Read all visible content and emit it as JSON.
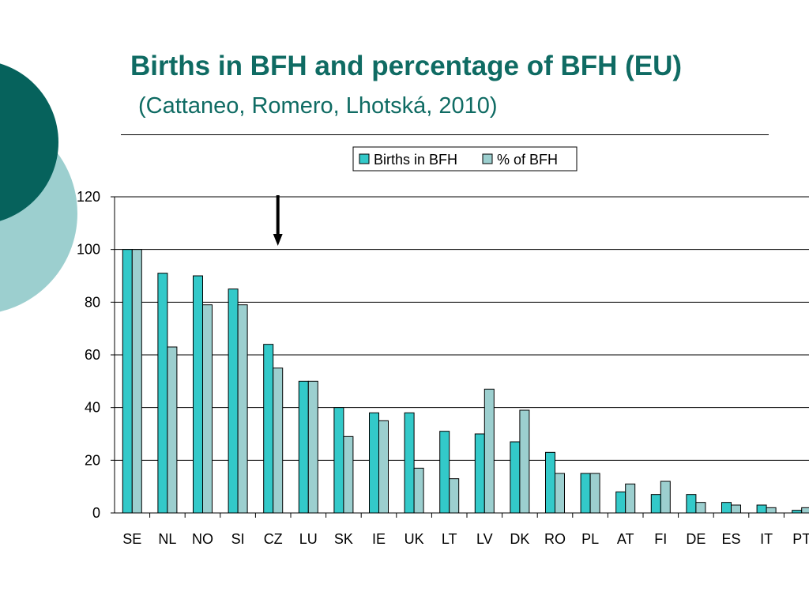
{
  "slide": {
    "title": "Births in BFH and percentage of BFH (EU)",
    "subtitle": "(Cattaneo, Romero, Lhotská, 2010)",
    "title_color": "#0f6b63",
    "decor_colors": {
      "dark_circle": "#06625c",
      "light_circle": "#9ccfcf"
    }
  },
  "chart_data": {
    "type": "bar",
    "title": "",
    "xlabel": "",
    "ylabel": "",
    "ylim": [
      0,
      120
    ],
    "yticks": [
      0,
      20,
      40,
      60,
      80,
      100,
      120
    ],
    "grid": true,
    "legend_position": "top-center",
    "categories": [
      "SE",
      "NL",
      "NO",
      "SI",
      "CZ",
      "LU",
      "SK",
      "IE",
      "UK",
      "LT",
      "LV",
      "DK",
      "RO",
      "PL",
      "AT",
      "FI",
      "DE",
      "ES",
      "IT",
      "PT"
    ],
    "series": [
      {
        "name": "Births in BFH",
        "color": "#33c9c9",
        "values": [
          100,
          91,
          90,
          85,
          64,
          50,
          40,
          38,
          38,
          31,
          30,
          27,
          23,
          15,
          8,
          7,
          7,
          4,
          3,
          1
        ]
      },
      {
        "name": "% of BFH",
        "color": "#9ccfcf",
        "values": [
          100,
          63,
          79,
          79,
          55,
          50,
          29,
          35,
          17,
          13,
          47,
          39,
          15,
          15,
          11,
          12,
          4,
          3,
          2,
          2
        ]
      }
    ],
    "annotation": {
      "type": "arrow",
      "points_to": "CZ"
    }
  }
}
